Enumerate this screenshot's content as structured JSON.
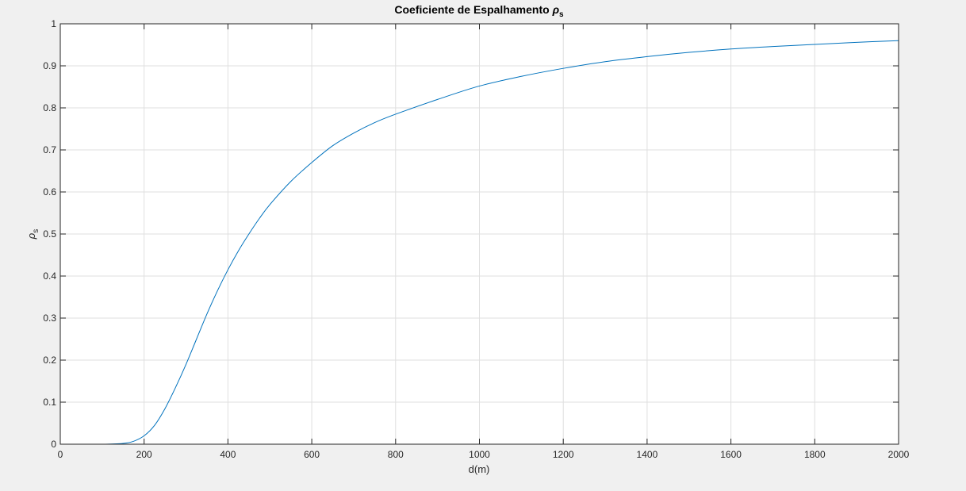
{
  "chart_data": {
    "type": "line",
    "title": "Coeficiente de Espalhamento ",
    "title_symbol": "ρ",
    "title_subscript": "s",
    "xlabel": "d(m)",
    "ylabel_symbol": "ρ",
    "ylabel_subscript": "s",
    "xlim": [
      0,
      2000
    ],
    "ylim": [
      0,
      1
    ],
    "x_ticks": [
      0,
      200,
      400,
      600,
      800,
      1000,
      1200,
      1400,
      1600,
      1800,
      2000
    ],
    "x_tick_labels": [
      "0",
      "200",
      "400",
      "600",
      "800",
      "1000",
      "1200",
      "1400",
      "1600",
      "1800",
      "2000"
    ],
    "y_ticks": [
      0,
      0.1,
      0.2,
      0.3,
      0.4,
      0.5,
      0.6,
      0.7,
      0.8,
      0.9,
      1
    ],
    "y_tick_labels": [
      "0",
      "0.1",
      "0.2",
      "0.3",
      "0.4",
      "0.5",
      "0.6",
      "0.7",
      "0.8",
      "0.9",
      "1"
    ],
    "grid": true,
    "line_color": "#0072bd",
    "series": [
      {
        "x": [
          0,
          100,
          150,
          175,
          200,
          225,
          250,
          275,
          300,
          325,
          350,
          375,
          400,
          425,
          450,
          475,
          500,
          550,
          600,
          650,
          700,
          750,
          800,
          900,
          1000,
          1100,
          1200,
          1300,
          1400,
          1500,
          1600,
          1700,
          1800,
          1900,
          2000
        ],
        "y": [
          0,
          0,
          0.002,
          0.007,
          0.02,
          0.045,
          0.085,
          0.135,
          0.19,
          0.25,
          0.31,
          0.365,
          0.415,
          0.46,
          0.5,
          0.537,
          0.57,
          0.625,
          0.67,
          0.71,
          0.74,
          0.765,
          0.785,
          0.82,
          0.852,
          0.875,
          0.894,
          0.91,
          0.922,
          0.932,
          0.94,
          0.946,
          0.951,
          0.956,
          0.96
        ]
      }
    ]
  }
}
